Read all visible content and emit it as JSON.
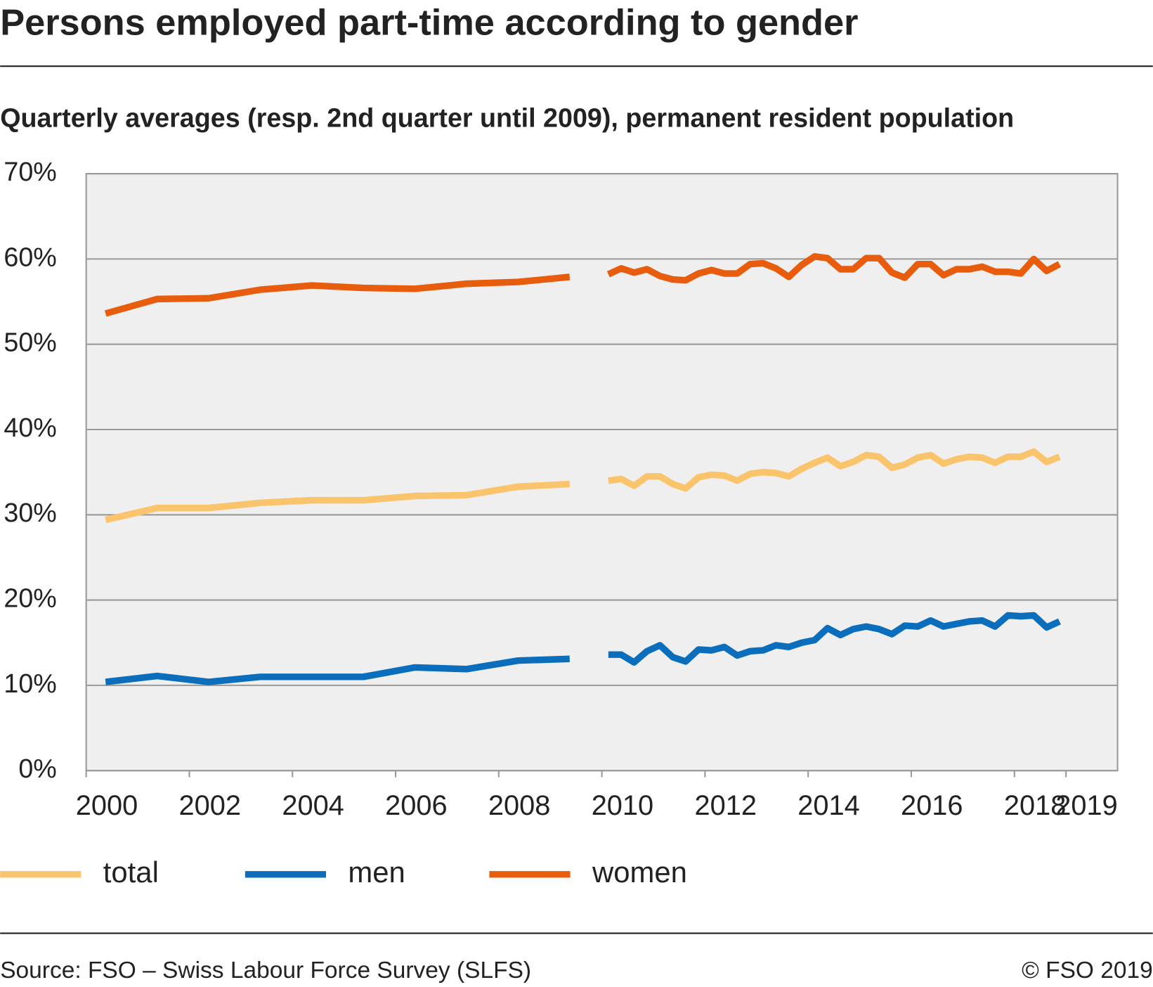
{
  "chart_data": {
    "type": "line",
    "title": "Persons employed part-time according to gender",
    "subtitle": "Quarterly averages (resp. 2nd quarter until 2009), permanent resident population",
    "source": "Source: FSO – Swiss Labour Force Survey (SLFS)",
    "copyright": "© FSO 2019",
    "x": [
      2000.375,
      2001.375,
      2002.375,
      2003.375,
      2004.375,
      2005.375,
      2006.375,
      2007.375,
      2008.375,
      2009.375,
      2009.875,
      2010.125,
      2010.375,
      2010.625,
      2010.875,
      2011.125,
      2011.375,
      2011.625,
      2011.875,
      2012.125,
      2012.375,
      2012.625,
      2012.875,
      2013.125,
      2013.375,
      2013.625,
      2013.875,
      2014.125,
      2014.375,
      2014.625,
      2014.875,
      2015.125,
      2015.375,
      2015.625,
      2015.875,
      2016.125,
      2016.375,
      2016.625,
      2016.875,
      2017.125,
      2017.375,
      2017.625,
      2017.875,
      2018.125,
      2018.375,
      2018.625,
      2018.875
    ],
    "series": [
      {
        "name": "total",
        "color": "#fac46c",
        "values": [
          29.4,
          30.8,
          30.8,
          31.4,
          31.7,
          31.7,
          32.2,
          32.3,
          33.3,
          33.6,
          null,
          34.0,
          34.2,
          33.4,
          34.5,
          34.5,
          33.6,
          33.1,
          34.4,
          34.7,
          34.6,
          34.0,
          34.8,
          35.0,
          34.9,
          34.5,
          35.4,
          36.1,
          36.7,
          35.7,
          36.2,
          37.0,
          36.8,
          35.5,
          35.9,
          36.7,
          37.0,
          36.0,
          36.5,
          36.8,
          36.7,
          36.1,
          36.8,
          36.8,
          37.4,
          36.2,
          36.8
        ]
      },
      {
        "name": "men",
        "color": "#0a6ebd",
        "values": [
          10.4,
          11.1,
          10.4,
          11.0,
          11.0,
          11.0,
          12.1,
          11.9,
          12.9,
          13.1,
          null,
          13.6,
          13.6,
          12.7,
          14.0,
          14.7,
          13.3,
          12.8,
          14.2,
          14.1,
          14.5,
          13.5,
          14.0,
          14.1,
          14.7,
          14.5,
          15.0,
          15.3,
          16.7,
          15.9,
          16.6,
          16.9,
          16.6,
          16.0,
          17.0,
          16.9,
          17.6,
          16.9,
          17.2,
          17.5,
          17.6,
          16.9,
          18.2,
          18.1,
          18.2,
          16.8,
          17.5
        ]
      },
      {
        "name": "women",
        "color": "#e85c0e",
        "values": [
          53.6,
          55.3,
          55.4,
          56.4,
          56.9,
          56.6,
          56.5,
          57.1,
          57.3,
          57.9,
          null,
          58.2,
          58.9,
          58.4,
          58.8,
          58.0,
          57.6,
          57.5,
          58.3,
          58.7,
          58.3,
          58.3,
          59.4,
          59.5,
          58.9,
          57.9,
          59.3,
          60.3,
          60.1,
          58.8,
          58.8,
          60.1,
          60.1,
          58.4,
          57.8,
          59.4,
          59.4,
          58.1,
          58.8,
          58.8,
          59.1,
          58.5,
          58.5,
          58.3,
          60.0,
          58.6,
          59.4
        ]
      }
    ],
    "xlim": [
      2000,
      2020
    ],
    "xticks": [
      2000,
      2002,
      2004,
      2006,
      2008,
      2010,
      2012,
      2014,
      2016,
      2018,
      2019
    ],
    "ylim": [
      0,
      70
    ],
    "yticks": [
      {
        "value": 0,
        "label": "0%"
      },
      {
        "value": 10,
        "label": "10%"
      },
      {
        "value": 20,
        "label": "20%"
      },
      {
        "value": 30,
        "label": "30%"
      },
      {
        "value": 40,
        "label": "40%"
      },
      {
        "value": 50,
        "label": "50%"
      },
      {
        "value": 60,
        "label": "60%"
      },
      {
        "value": 70,
        "label": "70%"
      }
    ],
    "grid": true
  }
}
